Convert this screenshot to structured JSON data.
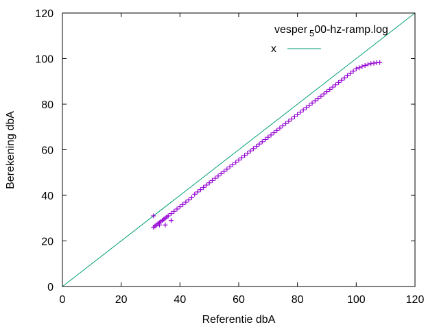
{
  "chart_data": {
    "type": "scatter",
    "title": "vesper_500-hz-ramp.log",
    "xlabel": "Referentie dbA",
    "ylabel": "Berekening dbA",
    "xlim": [
      0,
      120
    ],
    "ylim": [
      0,
      120
    ],
    "xticks": [
      0,
      20,
      40,
      60,
      80,
      100,
      120
    ],
    "yticks": [
      0,
      20,
      40,
      60,
      80,
      100,
      120
    ],
    "grid": false,
    "legend_position": "top-right",
    "series": [
      {
        "name": "vesper_500-hz-ramp.log",
        "kind": "scatter",
        "marker": "+",
        "color": "#9400d3",
        "x": [
          31,
          31.5,
          32,
          32.5,
          33,
          33.5,
          34,
          34.5,
          35,
          35.5,
          36,
          37,
          38,
          39,
          40,
          41,
          42,
          43,
          44,
          45,
          46,
          47,
          48,
          49,
          50,
          51,
          52,
          53,
          54,
          55,
          56,
          57,
          58,
          59,
          60,
          61,
          62,
          63,
          64,
          65,
          66,
          67,
          68,
          69,
          70,
          71,
          72,
          73,
          74,
          75,
          76,
          77,
          78,
          79,
          80,
          81,
          82,
          83,
          84,
          85,
          86,
          87,
          88,
          89,
          90,
          91,
          92,
          93,
          94,
          95,
          96,
          97,
          98,
          99,
          100,
          101,
          102,
          103,
          104,
          105,
          106,
          107,
          108,
          31,
          33,
          35,
          37
        ],
        "y": [
          26,
          26.5,
          27,
          27.5,
          28,
          28.5,
          29,
          29.5,
          30,
          30.5,
          31,
          32,
          33,
          34,
          35,
          36,
          37,
          38,
          39,
          40.5,
          41.5,
          42.5,
          43.5,
          44.5,
          45.5,
          46.5,
          47.5,
          48.5,
          49.5,
          50.5,
          51.5,
          52.5,
          53.5,
          54.5,
          55.5,
          56.5,
          57.5,
          58.5,
          59.5,
          60.5,
          61.5,
          62.5,
          63.5,
          64.5,
          65.5,
          66.5,
          67.5,
          68.5,
          69.5,
          70.5,
          71.5,
          72.5,
          73.5,
          74.5,
          75.5,
          76.5,
          77.5,
          78.5,
          79.5,
          80.5,
          81.5,
          82.5,
          83.5,
          84.5,
          85.5,
          86.5,
          87.5,
          88.5,
          89.5,
          90.5,
          91.5,
          92.5,
          93.5,
          94.5,
          95.5,
          96,
          96.5,
          97,
          97.5,
          97.8,
          98,
          98.2,
          98.3,
          31,
          27,
          27,
          29
        ]
      },
      {
        "name": "x",
        "kind": "line",
        "color": "#009e73",
        "x": [
          0,
          120
        ],
        "y": [
          0,
          120
        ]
      }
    ]
  }
}
